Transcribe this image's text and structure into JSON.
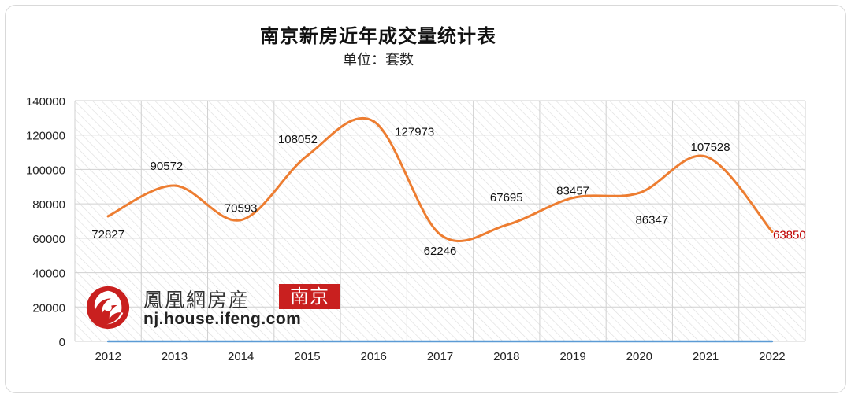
{
  "header": {
    "title": "南京新房近年成交量统计表",
    "subtitle": "单位：套数"
  },
  "watermark": {
    "brand": "鳳凰網房産",
    "city": "南京",
    "url": "nj.house.ifeng.com",
    "brand_color": "#c9201f"
  },
  "chart_data": {
    "type": "line",
    "title": "南京新房近年成交量统计表",
    "subtitle": "单位：套数",
    "xlabel": "",
    "ylabel": "",
    "categories": [
      "2012",
      "2013",
      "2014",
      "2015",
      "2016",
      "2017",
      "2018",
      "2019",
      "2020",
      "2021",
      "2022"
    ],
    "series": [
      {
        "color": "#ed7d31",
        "smooth": true,
        "values": [
          72827,
          90572,
          70593,
          108052,
          127973,
          62246,
          67695,
          83457,
          86347,
          107528,
          63850
        ],
        "data_labels": [
          "72827",
          "90572",
          "70593",
          "108052",
          "127973",
          "62246",
          "67695",
          "83457",
          "86347",
          "107528",
          "63850"
        ],
        "highlight": {
          "index": 10,
          "color": "#c00000"
        }
      },
      {
        "color": "#5b9bd5",
        "values": [
          0,
          0,
          0,
          0,
          0,
          0,
          0,
          0,
          0,
          0,
          0
        ]
      }
    ],
    "ylim": [
      0,
      140000
    ],
    "yticks": [
      "0",
      "20000",
      "40000",
      "60000",
      "80000",
      "100000",
      "120000",
      "140000"
    ],
    "grid": true,
    "legend": "none"
  }
}
